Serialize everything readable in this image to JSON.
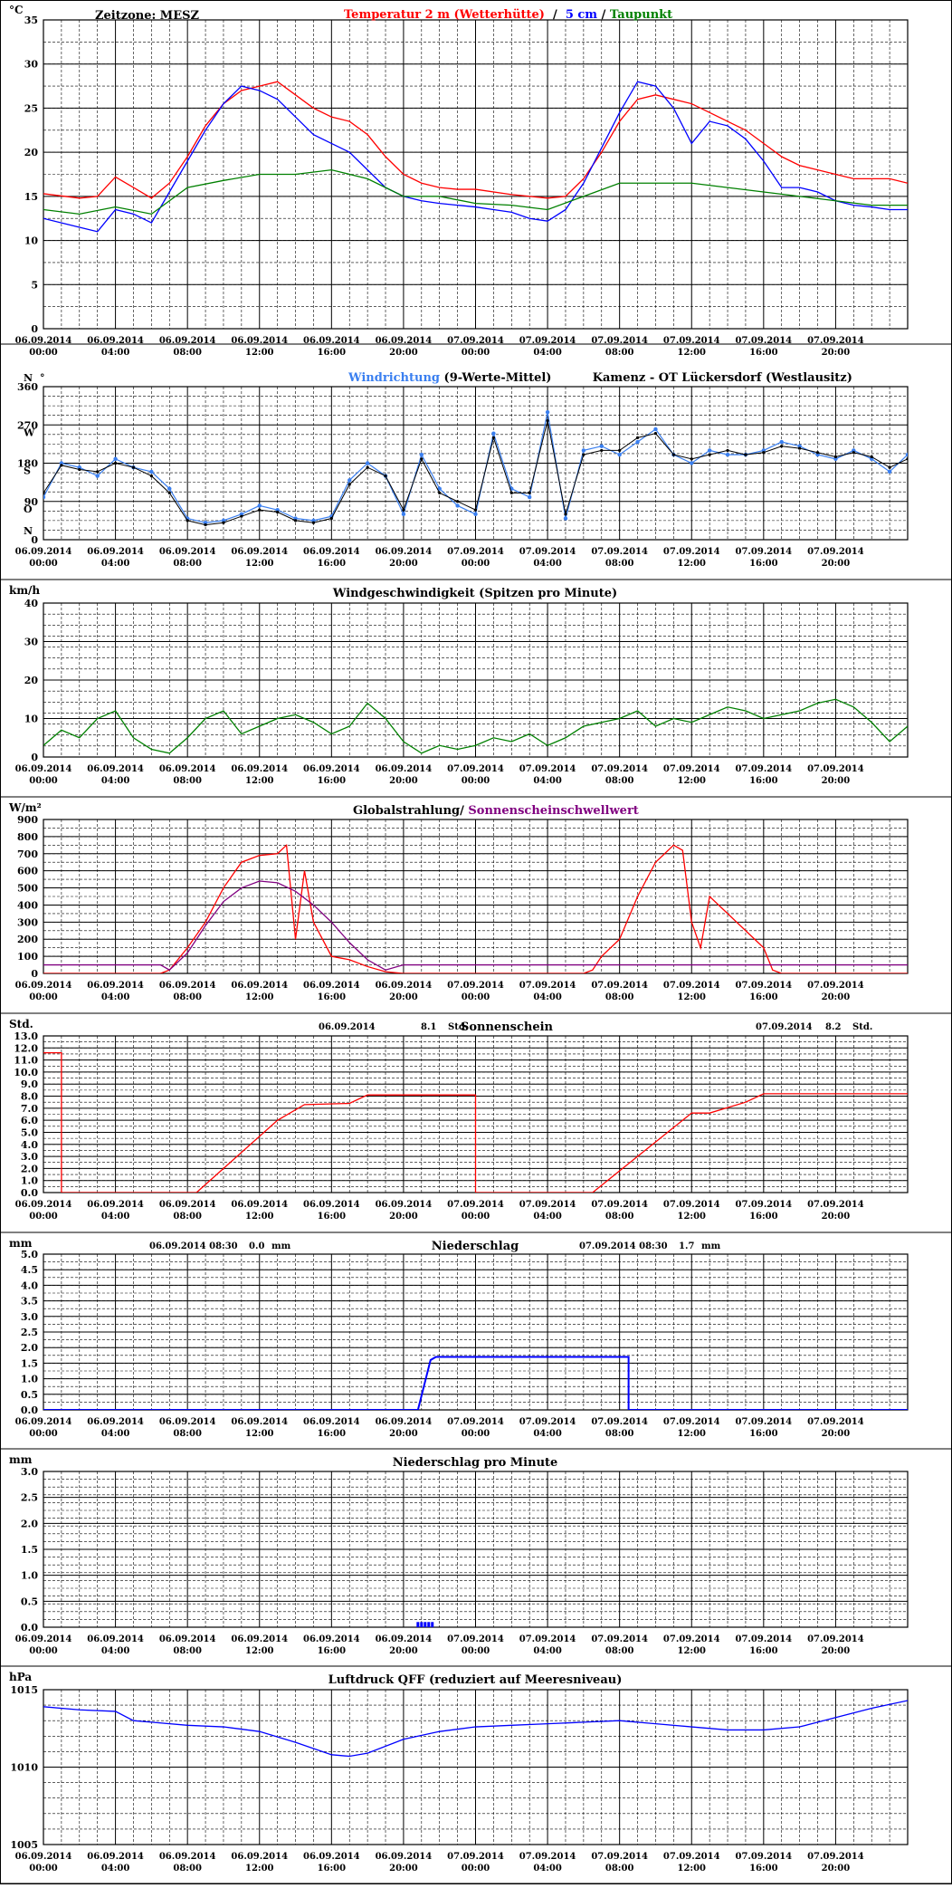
{
  "x_axis": {
    "ticks": [
      {
        "date": "06.09.2014",
        "time": "00:00"
      },
      {
        "date": "06.09.2014",
        "time": "04:00"
      },
      {
        "date": "06.09.2014",
        "time": "08:00"
      },
      {
        "date": "06.09.2014",
        "time": "12:00"
      },
      {
        "date": "06.09.2014",
        "time": "16:00"
      },
      {
        "date": "06.09.2014",
        "time": "20:00"
      },
      {
        "date": "07.09.2014",
        "time": "00:00"
      },
      {
        "date": "07.09.2014",
        "time": "04:00"
      },
      {
        "date": "07.09.2014",
        "time": "08:00"
      },
      {
        "date": "07.09.2014",
        "time": "12:00"
      },
      {
        "date": "07.09.2014",
        "time": "16:00"
      },
      {
        "date": "07.09.2014",
        "time": "20:00"
      }
    ]
  },
  "colors": {
    "red": "#ff0000",
    "blue": "#0000ff",
    "green": "#008000",
    "lightblue": "#3a7ff0",
    "black": "#000000",
    "purple": "#800080"
  },
  "chart_data": [
    {
      "id": "temperature",
      "type": "line",
      "ylabel": "°C",
      "ylim": [
        0,
        35
      ],
      "yticks": [
        0,
        5,
        10,
        15,
        20,
        25,
        30,
        35
      ],
      "header_left": "Zeitzone: MESZ",
      "title_parts": [
        {
          "text": "Temperatur 2 m (Wetterhütte)",
          "color": "red"
        },
        {
          "text": "  /  ",
          "color": "black"
        },
        {
          "text": "5 cm",
          "color": "blue"
        },
        {
          "text": " / ",
          "color": "black"
        },
        {
          "text": "Taupunkt",
          "color": "green"
        }
      ],
      "series": [
        {
          "name": "Temperatur 2 m (Wetterhütte)",
          "color": "red",
          "x": [
            0,
            2,
            3,
            4,
            5,
            6,
            7,
            8,
            9,
            10,
            11,
            12,
            13,
            14,
            15,
            16,
            17,
            18,
            19,
            20,
            21,
            22,
            23,
            24,
            26,
            28,
            29,
            30,
            31,
            32,
            33,
            34,
            35,
            36,
            37,
            38,
            39,
            40,
            41,
            42,
            43,
            44,
            45,
            46,
            47,
            48
          ],
          "y": [
            15.3,
            14.8,
            15.0,
            17.2,
            16.0,
            14.8,
            16.5,
            19.5,
            23.0,
            25.5,
            27.0,
            27.5,
            28.0,
            26.5,
            25.0,
            24.0,
            23.5,
            22.0,
            19.5,
            17.5,
            16.5,
            16.0,
            15.8,
            15.8,
            15.2,
            14.8,
            15.0,
            17.0,
            20.0,
            23.5,
            26.0,
            26.5,
            26.0,
            25.5,
            24.5,
            23.5,
            22.5,
            21.0,
            19.5,
            18.5,
            18.0,
            17.5,
            17.0,
            17.0,
            17.0,
            16.5
          ]
        },
        {
          "name": "5 cm",
          "color": "blue",
          "x": [
            0,
            2,
            3,
            4,
            5,
            6,
            7,
            8,
            9,
            10,
            11,
            12,
            13,
            14,
            15,
            16,
            17,
            18,
            19,
            20,
            21,
            22,
            23,
            24,
            25,
            26,
            27,
            28,
            29,
            30,
            31,
            32,
            33,
            34,
            35,
            36,
            37,
            38,
            39,
            40,
            41,
            42,
            43,
            44,
            45,
            46,
            47,
            48
          ],
          "y": [
            12.5,
            11.5,
            11.0,
            13.5,
            13.0,
            12.0,
            15.5,
            19.0,
            22.5,
            25.5,
            27.5,
            27.0,
            26.0,
            24.0,
            22.0,
            21.0,
            20.0,
            18.0,
            16.0,
            15.0,
            14.5,
            14.2,
            14.0,
            13.8,
            13.5,
            13.2,
            12.5,
            12.2,
            13.5,
            16.5,
            20.5,
            24.5,
            28.0,
            27.5,
            25.0,
            21.0,
            23.5,
            23.0,
            21.5,
            19.0,
            16.0,
            16.0,
            15.5,
            14.5,
            14.0,
            13.8,
            13.5,
            13.5
          ]
        },
        {
          "name": "Taupunkt",
          "color": "green",
          "x": [
            0,
            2,
            4,
            6,
            8,
            10,
            12,
            14,
            16,
            18,
            20,
            22,
            24,
            26,
            28,
            30,
            32,
            34,
            36,
            38,
            40,
            42,
            44,
            46,
            48
          ],
          "y": [
            13.5,
            13.0,
            13.8,
            13.0,
            16.0,
            16.8,
            17.5,
            17.5,
            18.0,
            17.0,
            15.0,
            15.0,
            14.2,
            14.0,
            13.5,
            15.0,
            16.5,
            16.5,
            16.5,
            16.0,
            15.5,
            15.0,
            14.5,
            14.0,
            14.0
          ]
        }
      ]
    },
    {
      "id": "wind_direction",
      "type": "scatter",
      "title_parts": [
        {
          "text": "Windrichtung",
          "color": "lightblue"
        },
        {
          "text": " (9-Werte-Mittel)",
          "color": "black"
        },
        {
          "text": "          Kamenz - OT Lückersdorf (Westlausitz)",
          "color": "black"
        }
      ],
      "ylim": [
        0,
        360
      ],
      "yticks": [
        0,
        90,
        180,
        270,
        360
      ],
      "compass_labels": [
        "N",
        "O",
        "S",
        "W",
        "N"
      ],
      "degree_sign": "°",
      "series": [
        {
          "name": "Windrichtung",
          "color": "lightblue",
          "x": [
            0,
            1,
            2,
            3,
            4,
            5,
            6,
            7,
            8,
            9,
            10,
            11,
            12,
            13,
            14,
            15,
            16,
            17,
            18,
            19,
            20,
            21,
            22,
            23,
            24,
            25,
            26,
            27,
            28,
            29,
            30,
            31,
            32,
            33,
            34,
            35,
            36,
            37,
            38,
            39,
            40,
            41,
            42,
            43,
            44,
            45,
            46,
            47,
            48
          ],
          "y": [
            100,
            180,
            170,
            150,
            190,
            170,
            160,
            120,
            50,
            40,
            45,
            60,
            80,
            70,
            50,
            45,
            55,
            140,
            180,
            150,
            60,
            200,
            120,
            80,
            60,
            250,
            120,
            100,
            300,
            50,
            210,
            220,
            200,
            230,
            260,
            200,
            180,
            210,
            200,
            200,
            210,
            230,
            220,
            200,
            190,
            210,
            190,
            160,
            200
          ]
        },
        {
          "name": "9-Werte-Mittel",
          "color": "black",
          "x": [
            0,
            1,
            2,
            3,
            4,
            5,
            6,
            7,
            8,
            9,
            10,
            11,
            12,
            13,
            14,
            15,
            16,
            17,
            18,
            19,
            20,
            21,
            22,
            23,
            24,
            25,
            26,
            27,
            28,
            29,
            30,
            31,
            32,
            33,
            34,
            35,
            36,
            37,
            38,
            39,
            40,
            41,
            42,
            43,
            44,
            45,
            46,
            47,
            48
          ],
          "y": [
            110,
            175,
            165,
            160,
            180,
            170,
            150,
            110,
            45,
            35,
            40,
            55,
            70,
            65,
            45,
            40,
            50,
            130,
            170,
            150,
            70,
            190,
            110,
            90,
            70,
            240,
            110,
            110,
            280,
            60,
            200,
            210,
            210,
            240,
            250,
            200,
            190,
            200,
            210,
            200,
            205,
            220,
            215,
            205,
            195,
            205,
            195,
            170,
            190
          ]
        }
      ]
    },
    {
      "id": "wind_speed",
      "type": "line",
      "ylabel": "km/h",
      "title": "Windgeschwindigkeit (Spitzen pro Minute)",
      "ylim": [
        0,
        40
      ],
      "yticks": [
        0,
        10,
        20,
        30,
        40
      ],
      "series": [
        {
          "name": "Windgeschwindigkeit",
          "color": "green",
          "x": [
            0,
            1,
            2,
            3,
            4,
            5,
            6,
            7,
            8,
            9,
            10,
            11,
            12,
            13,
            14,
            15,
            16,
            17,
            18,
            19,
            20,
            21,
            22,
            23,
            24,
            25,
            26,
            27,
            28,
            29,
            30,
            31,
            32,
            33,
            34,
            35,
            36,
            37,
            38,
            39,
            40,
            41,
            42,
            43,
            44,
            45,
            46,
            47,
            48
          ],
          "y": [
            3,
            7,
            5,
            10,
            12,
            5,
            2,
            1,
            5,
            10,
            12,
            6,
            8,
            10,
            11,
            9,
            6,
            8,
            14,
            10,
            4,
            1,
            3,
            2,
            3,
            5,
            4,
            6,
            3,
            5,
            8,
            9,
            10,
            12,
            8,
            10,
            9,
            11,
            13,
            12,
            10,
            11,
            12,
            14,
            15,
            13,
            9,
            4,
            8
          ]
        }
      ]
    },
    {
      "id": "radiation",
      "type": "line",
      "ylabel": "W/m²",
      "title_parts": [
        {
          "text": "Globalstrahlung/ ",
          "color": "black"
        },
        {
          "text": "Sonnenscheinschwellwert",
          "color": "purple"
        }
      ],
      "ylim": [
        0,
        900
      ],
      "yticks": [
        0,
        100,
        200,
        300,
        400,
        500,
        600,
        700,
        800,
        900
      ],
      "series": [
        {
          "name": "Globalstrahlung",
          "color": "red",
          "x": [
            0,
            6.5,
            7,
            8,
            9,
            10,
            11,
            12,
            13,
            13.5,
            14,
            14.5,
            15,
            16,
            17,
            18,
            19,
            20,
            21,
            22,
            23,
            24,
            25,
            26,
            30,
            30.5,
            31,
            32,
            33,
            34,
            35,
            35.5,
            36,
            36.5,
            37,
            38,
            39,
            40,
            40.5,
            41,
            48
          ],
          "y": [
            0,
            0,
            20,
            150,
            300,
            500,
            650,
            690,
            700,
            750,
            200,
            600,
            300,
            100,
            80,
            40,
            10,
            0,
            0,
            0,
            0,
            0,
            0,
            0,
            0,
            20,
            100,
            200,
            450,
            650,
            750,
            720,
            300,
            150,
            450,
            350,
            250,
            150,
            20,
            0,
            0
          ]
        },
        {
          "name": "Sonnenscheinschwellwert",
          "color": "purple",
          "x": [
            0,
            6.5,
            7,
            8,
            9,
            10,
            11,
            12,
            13,
            14,
            15,
            16,
            17,
            18,
            19,
            20,
            48
          ],
          "y": [
            50,
            50,
            20,
            120,
            280,
            420,
            500,
            540,
            530,
            480,
            400,
            300,
            180,
            80,
            20,
            50,
            50
          ]
        }
      ]
    },
    {
      "id": "sunshine",
      "type": "line",
      "ylabel": "Std.",
      "title": "Sonnenschein",
      "summary": [
        {
          "date": "06.09.2014",
          "value": "8.1",
          "unit": "Std."
        },
        {
          "date": "07.09.2014",
          "value": "8.2",
          "unit": "Std."
        }
      ],
      "ylim": [
        0,
        13
      ],
      "yticks": [
        0,
        1,
        2,
        3,
        4,
        5,
        6,
        7,
        8,
        9,
        10,
        11,
        12,
        13
      ],
      "series": [
        {
          "name": "Sonnenschein",
          "color": "red",
          "x": [
            0,
            1,
            1,
            8.5,
            10,
            13,
            14.5,
            17,
            18,
            24,
            24,
            30.5,
            32,
            36,
            37,
            39,
            40,
            48
          ],
          "y": [
            11.6,
            11.6,
            0,
            0,
            2,
            6,
            7.3,
            7.4,
            8.1,
            8.1,
            0,
            0,
            1.8,
            6.6,
            6.6,
            7.5,
            8.2,
            8.2
          ]
        }
      ]
    },
    {
      "id": "precipitation",
      "type": "line",
      "ylabel": "mm",
      "title": "Niederschlag",
      "summary": [
        {
          "date": "06.09.2014 08:30",
          "value": "0.0",
          "unit": "mm"
        },
        {
          "date": "07.09.2014 08:30",
          "value": "1.7",
          "unit": "mm"
        }
      ],
      "ylim": [
        0,
        5
      ],
      "yticks": [
        0,
        0.5,
        1,
        1.5,
        2,
        2.5,
        3,
        3.5,
        4,
        4.5,
        5
      ],
      "series": [
        {
          "name": "Niederschlag",
          "color": "blue",
          "x": [
            0,
            20.8,
            21.5,
            21.8,
            32.5,
            32.5,
            48
          ],
          "y": [
            0,
            0,
            1.6,
            1.7,
            1.7,
            0,
            0
          ]
        }
      ]
    },
    {
      "id": "precipitation_minute",
      "type": "bar",
      "ylabel": "mm",
      "title": "Niederschlag pro Minute",
      "ylim": [
        0,
        3
      ],
      "yticks": [
        0,
        0.5,
        1,
        1.5,
        2,
        2.5,
        3
      ],
      "series": [
        {
          "name": "Niederschlag pro Minute",
          "color": "blue",
          "x": [
            20.8,
            21.0,
            21.2,
            21.4,
            21.6
          ],
          "y": [
            0.1,
            0.1,
            0.1,
            0.1,
            0.1
          ]
        }
      ]
    },
    {
      "id": "pressure",
      "type": "line",
      "ylabel": "hPa",
      "title": "Luftdruck QFF (reduziert auf Meeresniveau)",
      "ylim": [
        1005,
        1015
      ],
      "yticks": [
        1005,
        1010,
        1015
      ],
      "series": [
        {
          "name": "Luftdruck QFF",
          "color": "blue",
          "x": [
            0,
            2,
            4,
            5,
            6,
            8,
            10,
            12,
            14,
            16,
            17,
            18,
            20,
            22,
            24,
            26,
            28,
            30,
            32,
            34,
            36,
            38,
            40,
            42,
            44,
            46,
            48
          ],
          "y": [
            1013.9,
            1013.7,
            1013.6,
            1013.0,
            1012.9,
            1012.7,
            1012.6,
            1012.3,
            1011.6,
            1010.8,
            1010.7,
            1010.9,
            1011.8,
            1012.3,
            1012.6,
            1012.7,
            1012.8,
            1012.9,
            1013.0,
            1012.8,
            1012.6,
            1012.4,
            1012.4,
            1012.6,
            1013.2,
            1013.8,
            1014.3
          ]
        }
      ]
    }
  ]
}
